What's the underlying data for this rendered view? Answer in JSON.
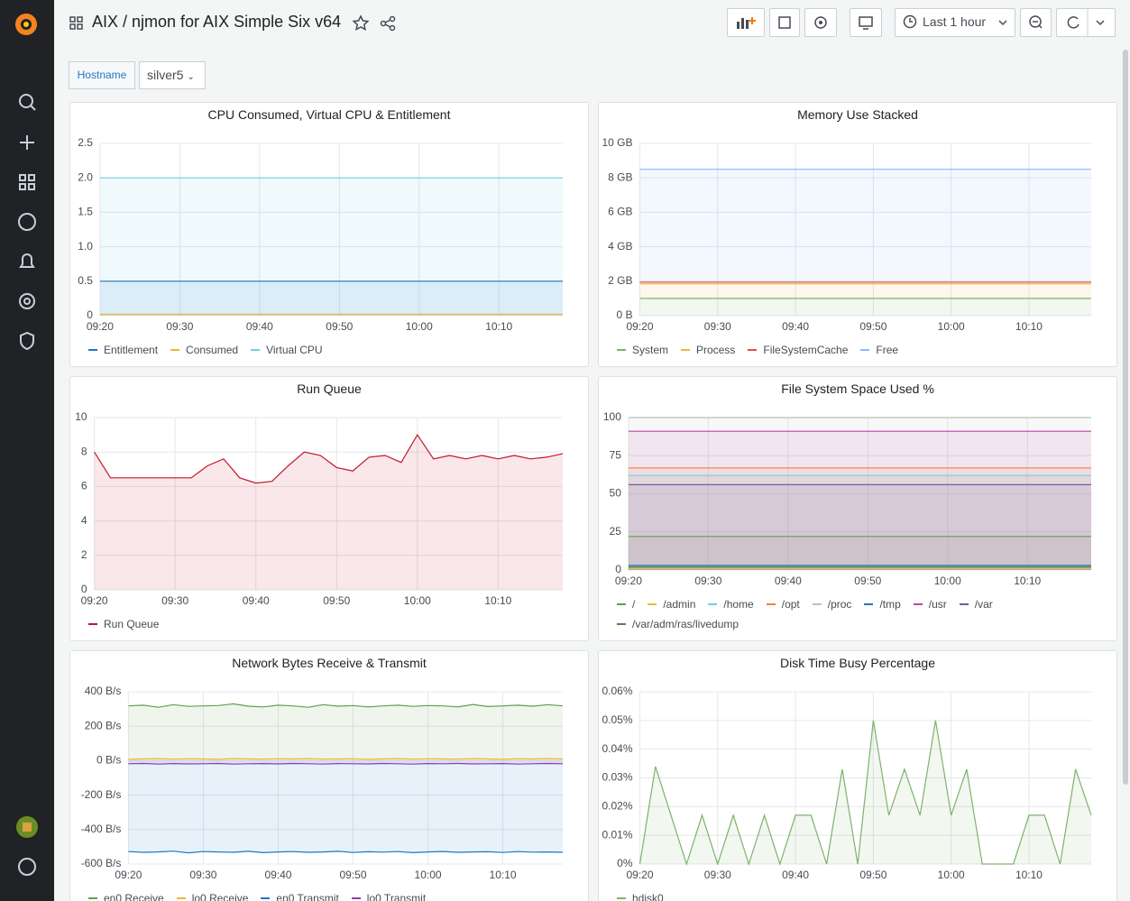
{
  "header": {
    "title": "AIX / njmon for AIX Simple Six v64",
    "time_range": "Last 1 hour"
  },
  "variables": [
    {
      "label": "Hostname",
      "value": "silver5"
    }
  ],
  "chart_data": [
    {
      "type": "line",
      "title": "CPU Consumed, Virtual CPU & Entitlement",
      "stacked": false,
      "fill": true,
      "grid": true,
      "categories": [
        "09:20",
        null,
        null,
        null,
        null,
        "09:30",
        null,
        null,
        null,
        null,
        "09:40",
        null,
        null,
        null,
        null,
        "09:50",
        null,
        null,
        null,
        null,
        "10:00",
        null,
        null,
        null,
        null,
        "10:10",
        null,
        null,
        null,
        null
      ],
      "ylim": [
        0,
        2.5
      ],
      "yticks": [
        0,
        0.5,
        {
          "value": 1,
          "label": "1.0"
        },
        1.5,
        {
          "value": 2,
          "label": "2.0"
        },
        2.5
      ],
      "series": [
        {
          "name": "Entitlement",
          "color": "#1f78c1",
          "values": [
            0.5,
            0.5,
            0.5,
            0.5,
            0.5,
            0.5,
            0.5,
            0.5,
            0.5,
            0.5,
            0.5,
            0.5,
            0.5,
            0.5,
            0.5,
            0.5,
            0.5,
            0.5,
            0.5,
            0.5,
            0.5,
            0.5,
            0.5,
            0.5,
            0.5,
            0.5,
            0.5,
            0.5,
            0.5,
            0.5
          ]
        },
        {
          "name": "Consumed",
          "color": "#eab839",
          "values": [
            0.02,
            0.02,
            0.02,
            0.02,
            0.02,
            0.02,
            0.02,
            0.02,
            0.02,
            0.02,
            0.02,
            0.02,
            0.02,
            0.02,
            0.02,
            0.02,
            0.02,
            0.02,
            0.02,
            0.02,
            0.02,
            0.02,
            0.02,
            0.02,
            0.02,
            0.02,
            0.02,
            0.02,
            0.02,
            0.02
          ]
        },
        {
          "name": "Virtual CPU",
          "color": "#6ed0e0",
          "values": [
            2,
            2,
            2,
            2,
            2,
            2,
            2,
            2,
            2,
            2,
            2,
            2,
            2,
            2,
            2,
            2,
            2,
            2,
            2,
            2,
            2,
            2,
            2,
            2,
            2,
            2,
            2,
            2,
            2,
            2
          ]
        }
      ]
    },
    {
      "type": "line",
      "title": "Memory Use Stacked",
      "stacked": true,
      "fill": true,
      "grid": true,
      "categories": [
        "09:20",
        null,
        null,
        null,
        null,
        "09:30",
        null,
        null,
        null,
        null,
        "09:40",
        null,
        null,
        null,
        null,
        "09:50",
        null,
        null,
        null,
        null,
        "10:00",
        null,
        null,
        null,
        null,
        "10:10",
        null,
        null,
        null,
        null
      ],
      "ylim": [
        0,
        10
      ],
      "yticks": [
        {
          "value": 0,
          "label": "0 B"
        },
        {
          "value": 2,
          "label": "2 GB"
        },
        {
          "value": 4,
          "label": "4 GB"
        },
        {
          "value": 6,
          "label": "6 GB"
        },
        {
          "value": 8,
          "label": "8 GB"
        },
        {
          "value": 10,
          "label": "10 GB"
        }
      ],
      "series": [
        {
          "name": "System",
          "color": "#7eb26d",
          "values": [
            1,
            1,
            1,
            1,
            1,
            1,
            1,
            1,
            1,
            1,
            1,
            1,
            1,
            1,
            1,
            1,
            1,
            1,
            1,
            1,
            1,
            1,
            1,
            1,
            1,
            1,
            1,
            1,
            1,
            1
          ]
        },
        {
          "name": "Process",
          "color": "#eab839",
          "values": [
            0.85,
            0.85,
            0.85,
            0.85,
            0.85,
            0.85,
            0.85,
            0.85,
            0.85,
            0.85,
            0.85,
            0.85,
            0.85,
            0.85,
            0.85,
            0.85,
            0.85,
            0.85,
            0.85,
            0.85,
            0.85,
            0.85,
            0.85,
            0.85,
            0.85,
            0.85,
            0.85,
            0.85,
            0.85,
            0.85
          ]
        },
        {
          "name": "FileSystemCache",
          "color": "#e24d42",
          "values": [
            0.1,
            0.1,
            0.1,
            0.1,
            0.1,
            0.1,
            0.1,
            0.1,
            0.1,
            0.1,
            0.1,
            0.1,
            0.1,
            0.1,
            0.1,
            0.1,
            0.1,
            0.1,
            0.1,
            0.1,
            0.1,
            0.1,
            0.1,
            0.1,
            0.1,
            0.1,
            0.1,
            0.1,
            0.1,
            0.1
          ]
        },
        {
          "name": "Free",
          "color": "#8ab8ff",
          "values": [
            6.55,
            6.55,
            6.55,
            6.55,
            6.55,
            6.55,
            6.55,
            6.55,
            6.55,
            6.55,
            6.55,
            6.55,
            6.55,
            6.55,
            6.55,
            6.55,
            6.55,
            6.55,
            6.55,
            6.55,
            6.55,
            6.55,
            6.55,
            6.55,
            6.55,
            6.55,
            6.55,
            6.55,
            6.55,
            6.55
          ]
        }
      ]
    },
    {
      "type": "line",
      "title": "Run Queue",
      "stacked": false,
      "fill": true,
      "grid": true,
      "categories": [
        "09:20",
        null,
        null,
        null,
        null,
        "09:30",
        null,
        null,
        null,
        null,
        "09:40",
        null,
        null,
        null,
        null,
        "09:50",
        null,
        null,
        null,
        null,
        "10:00",
        null,
        null,
        null,
        null,
        "10:10",
        null,
        null,
        null,
        null
      ],
      "ylim": [
        0,
        10
      ],
      "yticks": [
        0,
        2,
        4,
        6,
        8,
        10
      ],
      "series": [
        {
          "name": "Run Queue",
          "color": "#c4162a",
          "values": [
            8,
            6.5,
            6.5,
            6.5,
            6.5,
            6.5,
            6.5,
            7.2,
            7.6,
            6.5,
            6.2,
            6.3,
            7.2,
            8,
            7.8,
            7.1,
            6.9,
            7.7,
            7.8,
            7.4,
            9,
            7.6,
            7.8,
            7.6,
            7.8,
            7.6,
            7.8,
            7.6,
            7.7,
            7.9
          ]
        }
      ]
    },
    {
      "type": "line",
      "title": "File System Space Used %",
      "stacked": false,
      "fill": true,
      "grid": true,
      "categories": [
        "09:20",
        null,
        null,
        null,
        null,
        "09:30",
        null,
        null,
        null,
        null,
        "09:40",
        null,
        null,
        null,
        null,
        "09:50",
        null,
        null,
        null,
        null,
        "10:00",
        null,
        null,
        null,
        null,
        "10:10",
        null,
        null,
        null,
        null
      ],
      "ylim": [
        0,
        100
      ],
      "yticks": [
        0,
        25,
        50,
        75,
        100
      ],
      "series": [
        {
          "name": "/",
          "color": "#629e51",
          "values": [
            22,
            22,
            22,
            22,
            22,
            22,
            22,
            22,
            22,
            22,
            22,
            22,
            22,
            22,
            22,
            22,
            22,
            22,
            22,
            22,
            22,
            22,
            22,
            22,
            22,
            22,
            22,
            22,
            22,
            22
          ]
        },
        {
          "name": "/admin",
          "color": "#eab839",
          "values": [
            1,
            1,
            1,
            1,
            1,
            1,
            1,
            1,
            1,
            1,
            1,
            1,
            1,
            1,
            1,
            1,
            1,
            1,
            1,
            1,
            1,
            1,
            1,
            1,
            1,
            1,
            1,
            1,
            1,
            1
          ]
        },
        {
          "name": "/home",
          "color": "#6ed0e0",
          "values": [
            62,
            62,
            62,
            62,
            62,
            62,
            62,
            62,
            62,
            62,
            62,
            62,
            62,
            62,
            62,
            62,
            62,
            62,
            62,
            62,
            62,
            62,
            62,
            62,
            62,
            62,
            62,
            62,
            62,
            62
          ]
        },
        {
          "name": "/opt",
          "color": "#ef843c",
          "values": [
            67,
            67,
            67,
            67,
            67,
            67,
            67,
            67,
            67,
            67,
            67,
            67,
            67,
            67,
            67,
            67,
            67,
            67,
            67,
            67,
            67,
            67,
            67,
            67,
            67,
            67,
            67,
            67,
            67,
            67
          ]
        },
        {
          "name": "/proc",
          "color": "#bfbfbf",
          "values": [
            100,
            100,
            100,
            100,
            100,
            100,
            100,
            100,
            100,
            100,
            100,
            100,
            100,
            100,
            100,
            100,
            100,
            100,
            100,
            100,
            100,
            100,
            100,
            100,
            100,
            100,
            100,
            100,
            100,
            100
          ]
        },
        {
          "name": "/tmp",
          "color": "#1f78c1",
          "values": [
            3,
            3,
            3,
            3,
            3,
            3,
            3,
            3,
            3,
            3,
            3,
            3,
            3,
            3,
            3,
            3,
            3,
            3,
            3,
            3,
            3,
            3,
            3,
            3,
            3,
            3,
            3,
            3,
            3,
            3
          ]
        },
        {
          "name": "/usr",
          "color": "#ba43a9",
          "values": [
            91,
            91,
            91,
            91,
            91,
            91,
            91,
            91,
            91,
            91,
            91,
            91,
            91,
            91,
            91,
            91,
            91,
            91,
            91,
            91,
            91,
            91,
            91,
            91,
            91,
            91,
            91,
            91,
            91,
            91
          ]
        },
        {
          "name": "/var",
          "color": "#705da0",
          "values": [
            56,
            56,
            56,
            56,
            56,
            56,
            56,
            56,
            56,
            56,
            56,
            56,
            56,
            56,
            56,
            56,
            56,
            56,
            56,
            56,
            56,
            56,
            56,
            56,
            56,
            56,
            56,
            56,
            56,
            56
          ]
        },
        {
          "name": "/var/adm/ras/livedump",
          "color": "#508642",
          "values": [
            2,
            2,
            2,
            2,
            2,
            2,
            2,
            2,
            2,
            2,
            2,
            2,
            2,
            2,
            2,
            2,
            2,
            2,
            2,
            2,
            2,
            2,
            2,
            2,
            2,
            2,
            2,
            2,
            2,
            2
          ]
        }
      ]
    },
    {
      "type": "line",
      "title": "Network Bytes Receive & Transmit",
      "stacked": false,
      "fill": true,
      "grid": true,
      "categories": [
        "09:20",
        null,
        null,
        null,
        null,
        "09:30",
        null,
        null,
        null,
        null,
        "09:40",
        null,
        null,
        null,
        null,
        "09:50",
        null,
        null,
        null,
        null,
        "10:00",
        null,
        null,
        null,
        null,
        "10:10",
        null,
        null,
        null,
        null
      ],
      "ylim": [
        -600,
        400
      ],
      "yticks": [
        {
          "value": -600,
          "label": "-600 B/s"
        },
        {
          "value": -400,
          "label": "-400 B/s"
        },
        {
          "value": -200,
          "label": "-200 B/s"
        },
        {
          "value": 0,
          "label": "0 B/s"
        },
        {
          "value": 200,
          "label": "200 B/s"
        },
        {
          "value": 400,
          "label": "400 B/s"
        }
      ],
      "series": [
        {
          "name": "en0 Receive",
          "color": "#629e51",
          "values": [
            318,
            322,
            310,
            325,
            315,
            318,
            320,
            330,
            316,
            312,
            322,
            318,
            310,
            325,
            316,
            320,
            312,
            318,
            322,
            315,
            320,
            318,
            312,
            326,
            314,
            318,
            322,
            316,
            325,
            318
          ]
        },
        {
          "name": "lo0 Receive",
          "color": "#eab839",
          "values": [
            8,
            10,
            12,
            9,
            11,
            10,
            8,
            12,
            10,
            9,
            11,
            10,
            12,
            9,
            10,
            11,
            8,
            10,
            12,
            9,
            11,
            10,
            9,
            12,
            10,
            8,
            11,
            10,
            12,
            10
          ]
        },
        {
          "name": "en0 Transmit",
          "color": "#1f78c1",
          "values": [
            -528,
            -532,
            -530,
            -525,
            -535,
            -528,
            -530,
            -532,
            -526,
            -534,
            -530,
            -528,
            -532,
            -530,
            -526,
            -533,
            -529,
            -531,
            -528,
            -534,
            -530,
            -527,
            -532,
            -530,
            -529,
            -533,
            -528,
            -531,
            -530,
            -532
          ]
        },
        {
          "name": "lo0 Transmit",
          "color": "#8f3bb8",
          "values": [
            -18,
            -16,
            -20,
            -17,
            -19,
            -18,
            -16,
            -20,
            -18,
            -17,
            -19,
            -16,
            -18,
            -20,
            -17,
            -18,
            -19,
            -16,
            -18,
            -20,
            -17,
            -18,
            -16,
            -19,
            -18,
            -17,
            -20,
            -18,
            -16,
            -18
          ]
        }
      ]
    },
    {
      "type": "line",
      "title": "Disk Time Busy Percentage",
      "stacked": false,
      "fill": true,
      "grid": true,
      "categories": [
        "09:20",
        null,
        null,
        null,
        null,
        "09:30",
        null,
        null,
        null,
        null,
        "09:40",
        null,
        null,
        null,
        null,
        "09:50",
        null,
        null,
        null,
        null,
        "10:00",
        null,
        null,
        null,
        null,
        "10:10",
        null,
        null,
        null,
        null
      ],
      "ylim": [
        0,
        0.06
      ],
      "yticks": [
        {
          "value": 0,
          "label": "0%"
        },
        {
          "value": 0.01,
          "label": "0.01%"
        },
        {
          "value": 0.02,
          "label": "0.02%"
        },
        {
          "value": 0.03,
          "label": "0.03%"
        },
        {
          "value": 0.04,
          "label": "0.04%"
        },
        {
          "value": 0.05,
          "label": "0.05%"
        },
        {
          "value": 0.06,
          "label": "0.06%"
        }
      ],
      "series": [
        {
          "name": "hdisk0",
          "color": "#7eb26d",
          "values": [
            0,
            0.034,
            0.017,
            0,
            0.017,
            0,
            0.017,
            0,
            0.017,
            0,
            0.017,
            0.017,
            0,
            0.033,
            0,
            0.05,
            0.017,
            0.033,
            0.017,
            0.05,
            0.017,
            0.033,
            0,
            0,
            0,
            0.017,
            0.017,
            0,
            0.033,
            0.017
          ]
        }
      ]
    }
  ]
}
